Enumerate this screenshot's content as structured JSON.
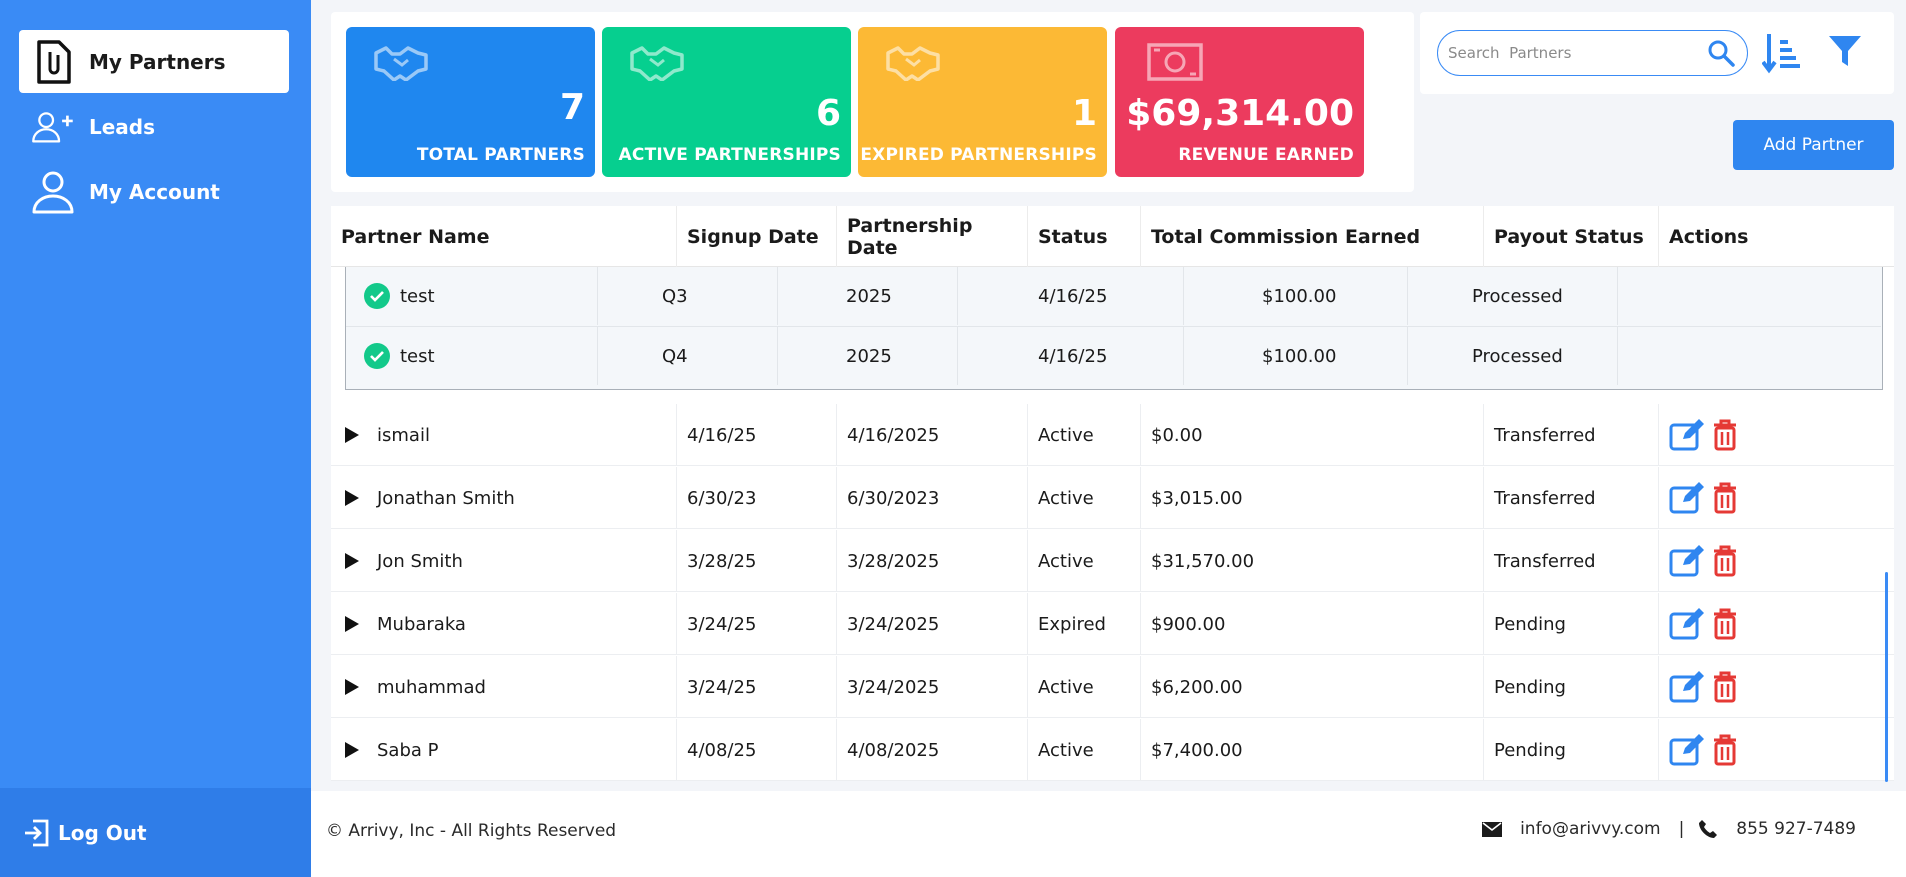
{
  "sidebar": {
    "items": [
      {
        "label": "My Partners",
        "icon": "paperclip-file-icon",
        "active": true
      },
      {
        "label": "Leads",
        "icon": "add-user-icon"
      },
      {
        "label": "My Account",
        "icon": "user-icon"
      }
    ],
    "logout_label": "Log Out"
  },
  "stats": [
    {
      "value": "7",
      "label": "TOTAL PARTNERS",
      "color": "#1f87ef",
      "icon": "handshake-icon"
    },
    {
      "value": "6",
      "label": "ACTIVE PARTNERSHIPS",
      "color": "#06cf8f",
      "icon": "handshake-icon"
    },
    {
      "value": "1",
      "label": "EXPIRED PARTNERSHIPS",
      "color": "#fcb935",
      "icon": "handshake-icon"
    },
    {
      "value": "$69,314.00",
      "label": "REVENUE EARNED",
      "color": "#ec3b5e",
      "icon": "money-bill-icon"
    }
  ],
  "search": {
    "placeholder": "Search  Partners",
    "value": ""
  },
  "add_partner_label": "Add Partner",
  "table": {
    "headers": [
      "Partner Name",
      "Signup Date",
      "Partnership Date",
      "Status",
      "Total Commission Earned",
      "Payout Status",
      "Actions"
    ],
    "expanded_rows": [
      {
        "name": "test",
        "quarter": "Q3",
        "year": "2025",
        "date": "4/16/25",
        "amount": "$100.00",
        "status": "Processed"
      },
      {
        "name": "test",
        "quarter": "Q4",
        "year": "2025",
        "date": "4/16/25",
        "amount": "$100.00",
        "status": "Processed"
      }
    ],
    "rows": [
      {
        "name": "ismail",
        "signup": "4/16/25",
        "partnership": "4/16/2025",
        "status": "Active",
        "commission": "$0.00",
        "payout": "Transferred"
      },
      {
        "name": "Jonathan Smith",
        "signup": "6/30/23",
        "partnership": "6/30/2023",
        "status": "Active",
        "commission": "$3,015.00",
        "payout": "Transferred"
      },
      {
        "name": "Jon Smith",
        "signup": "3/28/25",
        "partnership": "3/28/2025",
        "status": "Active",
        "commission": "$31,570.00",
        "payout": "Transferred"
      },
      {
        "name": "Mubaraka",
        "signup": "3/24/25",
        "partnership": "3/24/2025",
        "status": "Expired",
        "commission": "$900.00",
        "payout": "Pending"
      },
      {
        "name": "muhammad",
        "signup": "3/24/25",
        "partnership": "3/24/2025",
        "status": "Active",
        "commission": "$6,200.00",
        "payout": "Pending"
      },
      {
        "name": "Saba P",
        "signup": "4/08/25",
        "partnership": "4/08/2025",
        "status": "Active",
        "commission": "$7,400.00",
        "payout": "Pending"
      }
    ]
  },
  "footer": {
    "copyright": "© Arrivy, Inc - All Rights Reserved",
    "email": "info@arivvy.com",
    "separator": "|",
    "phone": "855 927-7489"
  },
  "colors": {
    "accent": "#3a8bf5",
    "edit": "#2f86f0",
    "delete": "#e53935"
  }
}
